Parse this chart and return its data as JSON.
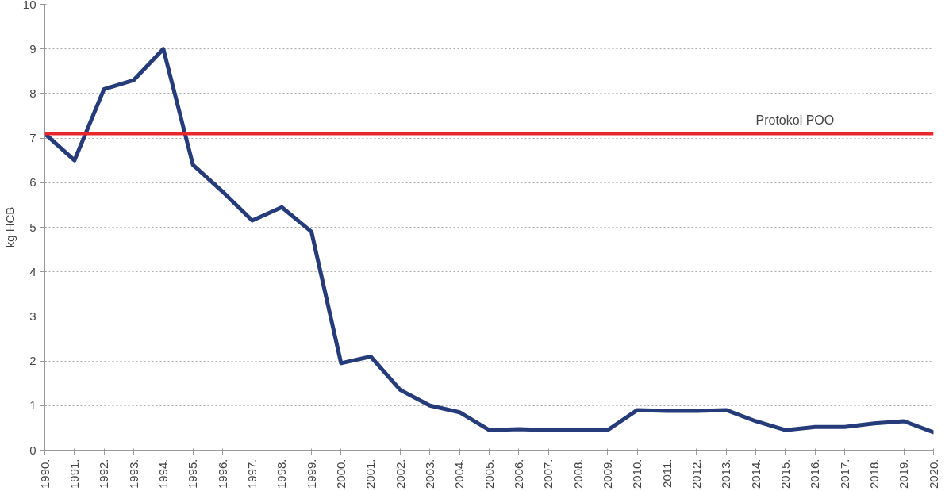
{
  "chart_data": {
    "type": "line",
    "ylabel": "kg HCB",
    "categories": [
      "1990.",
      "1991.",
      "1992.",
      "1993.",
      "1994.",
      "1995.",
      "1996.",
      "1997.",
      "1998.",
      "1999.",
      "2000.",
      "2001.",
      "2002.",
      "2003.",
      "2004.",
      "2005.",
      "2006.",
      "2007.",
      "2008.",
      "2009.",
      "2010.",
      "2011.",
      "2012.",
      "2013.",
      "2014.",
      "2015.",
      "2016.",
      "2017.",
      "2018.",
      "2019.",
      "2020."
    ],
    "series": [
      {
        "color": "#263c7a",
        "values": [
          7.1,
          6.5,
          8.1,
          8.3,
          9.0,
          6.4,
          5.8,
          5.15,
          5.45,
          4.9,
          1.95,
          2.1,
          1.35,
          1.0,
          0.85,
          0.45,
          0.47,
          0.45,
          0.45,
          0.45,
          0.9,
          0.88,
          0.88,
          0.9,
          0.65,
          0.45,
          0.52,
          0.52,
          0.6,
          0.65,
          0.4
        ]
      }
    ],
    "ylim": [
      0,
      10
    ],
    "yticks": [
      0,
      1,
      2,
      3,
      4,
      5,
      6,
      7,
      8,
      9,
      10
    ],
    "ref_lines": [
      {
        "axis": "y",
        "value": 7.1,
        "label": "Protokol POO",
        "color": "#e8262b"
      }
    ],
    "grid": "y"
  }
}
